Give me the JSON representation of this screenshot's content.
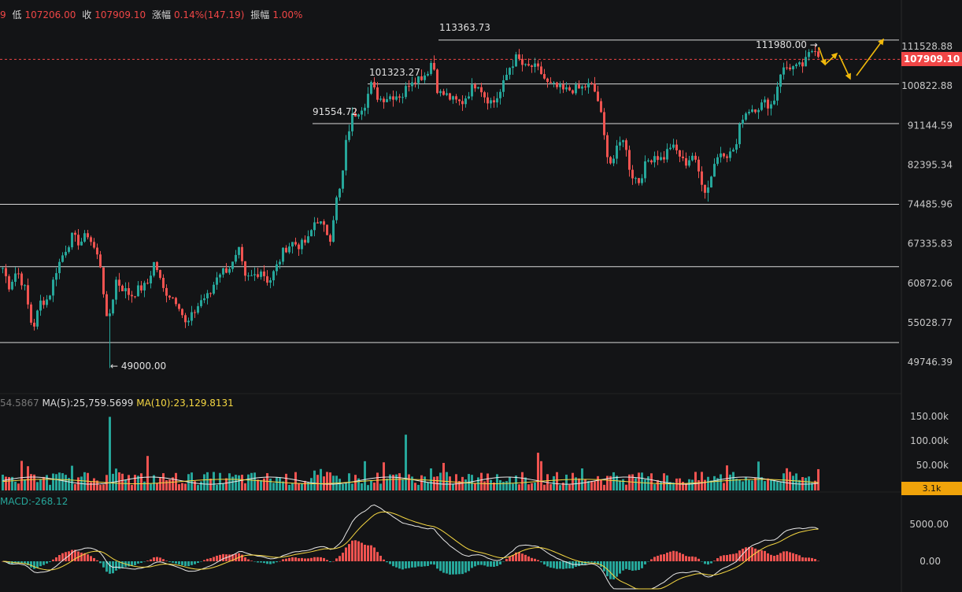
{
  "header": {
    "truncated_lead": "9",
    "low_label": "低",
    "low_value": "107206.00",
    "close_label": "收",
    "close_value": "107909.10",
    "change_label": "涨幅",
    "change_value": "0.14%(147.19)",
    "amplitude_label": "振幅",
    "amplitude_value": "1.00%"
  },
  "price_axis": {
    "ticks": [
      "111528.88",
      "100822.88",
      "91144.59",
      "82395.34",
      "74485.96",
      "67335.83",
      "60872.06",
      "55028.77",
      "49746.39"
    ],
    "current_price": "107909.10"
  },
  "levels": {
    "l1": "113363.73",
    "l2": "111980.00 →",
    "l3": "101323.27",
    "l4": "91554.72",
    "low_mark": "← 49000.00"
  },
  "volume": {
    "header_partial": "54.5867",
    "ma5": "MA(5):25,759.5699",
    "ma10": "MA(10):23,129.8131",
    "ticks": [
      "150.00k",
      "100.00k",
      "50.00k"
    ],
    "current": "3.1k"
  },
  "macd": {
    "label": "MACD:-268.12",
    "ticks": [
      "5000.00",
      "0.00"
    ]
  },
  "colors": {
    "up": "#26a69a",
    "down": "#ef5350",
    "ma_yellow": "#f5d742",
    "arrow": "#f0b90b"
  },
  "chart_data": {
    "type": "candlestick",
    "y_scale": "log",
    "ylim": [
      46000,
      122000
    ],
    "horizontal_levels": [
      113363.73,
      101323.27,
      91554.72,
      74485.96,
      63500,
      52300
    ],
    "anchors": [
      [
        0,
        64000
      ],
      [
        10,
        60500
      ],
      [
        20,
        63000
      ],
      [
        30,
        60000
      ],
      [
        40,
        54000
      ],
      [
        50,
        58000
      ],
      [
        60,
        58500
      ],
      [
        70,
        63000
      ],
      [
        80,
        66000
      ],
      [
        90,
        68500
      ],
      [
        100,
        67500
      ],
      [
        110,
        69000
      ],
      [
        120,
        66000
      ],
      [
        128,
        63000
      ],
      [
        133,
        55000
      ],
      [
        140,
        57000
      ],
      [
        145,
        61500
      ],
      [
        155,
        60000
      ],
      [
        165,
        59000
      ],
      [
        175,
        60000
      ],
      [
        185,
        60500
      ],
      [
        195,
        64500
      ],
      [
        205,
        60000
      ],
      [
        215,
        59000
      ],
      [
        225,
        58000
      ],
      [
        235,
        54500
      ],
      [
        245,
        56500
      ],
      [
        255,
        58500
      ],
      [
        265,
        59000
      ],
      [
        275,
        62500
      ],
      [
        285,
        63000
      ],
      [
        295,
        64000
      ],
      [
        302,
        66000
      ],
      [
        310,
        61500
      ],
      [
        320,
        62000
      ],
      [
        330,
        63000
      ],
      [
        340,
        61000
      ],
      [
        350,
        63500
      ],
      [
        360,
        66500
      ],
      [
        370,
        67500
      ],
      [
        380,
        67000
      ],
      [
        390,
        68000
      ],
      [
        400,
        72000
      ],
      [
        410,
        70000
      ],
      [
        418,
        68500
      ],
      [
        425,
        75000
      ],
      [
        432,
        78000
      ],
      [
        438,
        87000
      ],
      [
        445,
        93000
      ],
      [
        455,
        95000
      ],
      [
        462,
        96500
      ],
      [
        470,
        101000
      ],
      [
        480,
        97500
      ],
      [
        490,
        98000
      ],
      [
        500,
        98500
      ],
      [
        510,
        98500
      ],
      [
        520,
        102500
      ],
      [
        530,
        103000
      ],
      [
        540,
        104000
      ],
      [
        548,
        108000
      ],
      [
        555,
        99000
      ],
      [
        565,
        98500
      ],
      [
        575,
        97000
      ],
      [
        585,
        96500
      ],
      [
        595,
        99500
      ],
      [
        605,
        102000
      ],
      [
        615,
        98000
      ],
      [
        625,
        96500
      ],
      [
        635,
        99500
      ],
      [
        645,
        105500
      ],
      [
        655,
        108500
      ],
      [
        665,
        105500
      ],
      [
        675,
        106000
      ],
      [
        685,
        104500
      ],
      [
        695,
        101000
      ],
      [
        705,
        100500
      ],
      [
        715,
        99500
      ],
      [
        725,
        100000
      ],
      [
        735,
        100000
      ],
      [
        745,
        101000
      ],
      [
        752,
        100500
      ],
      [
        760,
        96000
      ],
      [
        768,
        86000
      ],
      [
        775,
        82500
      ],
      [
        782,
        85500
      ],
      [
        790,
        88500
      ],
      [
        800,
        80500
      ],
      [
        810,
        79000
      ],
      [
        820,
        83000
      ],
      [
        830,
        84500
      ],
      [
        840,
        83500
      ],
      [
        850,
        86500
      ],
      [
        860,
        85000
      ],
      [
        868,
        82500
      ],
      [
        878,
        84500
      ],
      [
        888,
        80000
      ],
      [
        896,
        76500
      ],
      [
        905,
        82500
      ],
      [
        915,
        85500
      ],
      [
        925,
        84500
      ],
      [
        935,
        87000
      ],
      [
        940,
        93000
      ],
      [
        950,
        95000
      ],
      [
        960,
        95500
      ],
      [
        970,
        96500
      ],
      [
        980,
        96000
      ],
      [
        990,
        104500
      ],
      [
        1000,
        106000
      ],
      [
        1010,
        105500
      ],
      [
        1020,
        106500
      ],
      [
        1028,
        110000
      ],
      [
        1035,
        111500
      ],
      [
        1040,
        108000
      ]
    ],
    "volume_range": [
      0,
      180000
    ],
    "macd_range": [
      -3000,
      8000
    ]
  }
}
